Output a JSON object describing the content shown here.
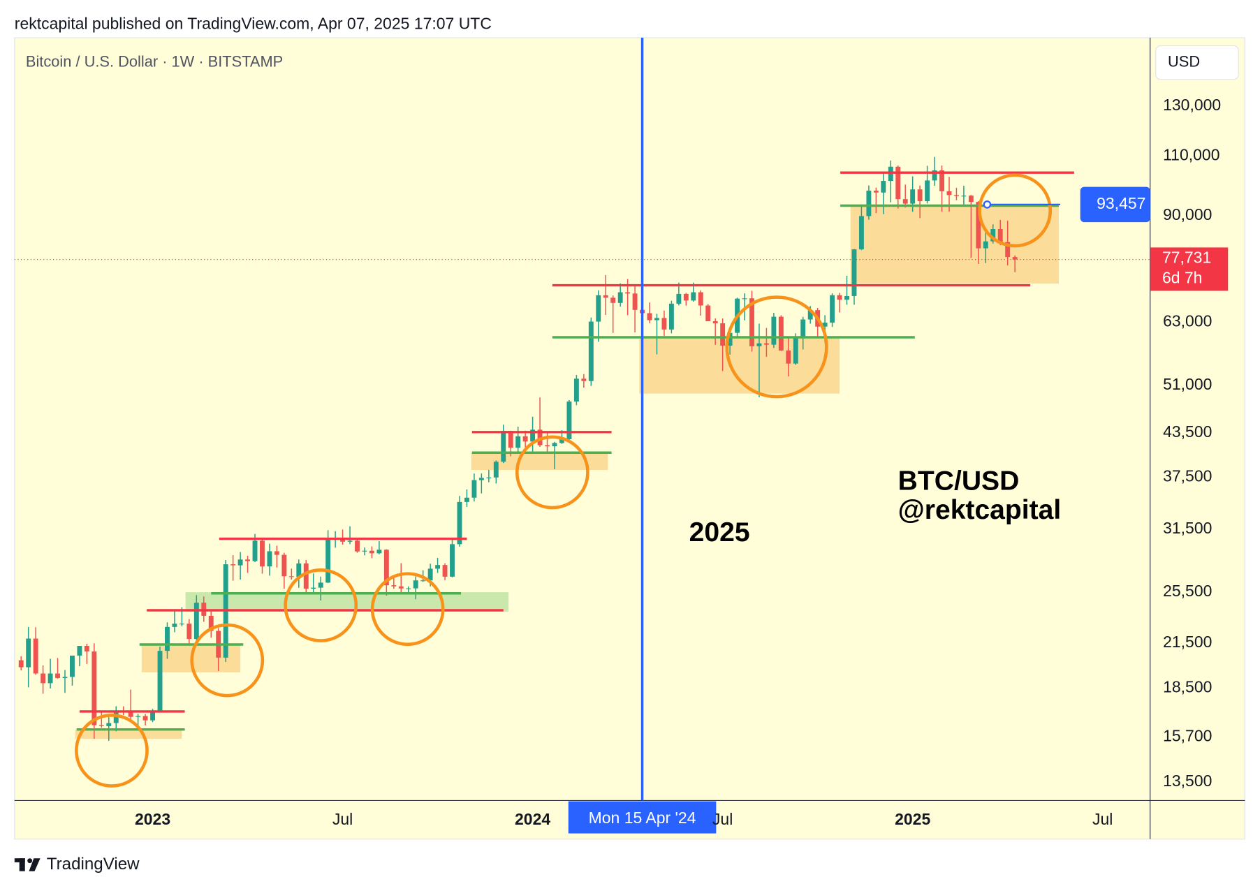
{
  "header": {
    "publisher": "rektcapital published on TradingView.com, Apr 07, 2025 17:07 UTC"
  },
  "chart_data": {
    "type": "candlestick",
    "title": "Bitcoin / U.S. Dollar · 1W · BITSTAMP",
    "currency": "USD",
    "up_color": "#22a08b",
    "down_color": "#ef5350",
    "yscale": "log",
    "x": [
      0,
      1,
      2,
      3,
      4,
      5,
      6,
      7,
      8,
      9,
      10,
      11,
      12,
      13,
      14,
      15,
      16,
      17,
      18,
      19,
      20,
      21,
      22,
      23,
      24,
      25,
      26,
      27,
      28,
      29,
      30,
      31,
      32,
      33,
      34,
      35,
      36,
      37,
      38,
      39,
      40,
      41,
      42,
      43,
      44,
      45,
      46,
      47,
      48,
      49,
      50,
      51,
      52,
      53,
      54,
      55,
      56,
      57,
      58,
      59,
      60,
      61,
      62,
      63,
      64,
      65,
      66,
      67,
      68,
      69,
      70,
      71,
      72,
      73,
      74,
      75,
      76,
      77,
      78,
      79,
      80,
      81,
      82,
      83,
      84,
      85,
      86,
      87,
      88,
      89,
      90,
      91,
      92,
      93,
      94,
      95,
      96,
      97,
      98,
      99,
      100,
      101,
      102,
      103,
      104,
      105,
      106,
      107,
      108,
      109,
      110,
      111,
      112,
      113,
      114,
      115,
      116,
      117,
      118,
      119,
      120,
      121,
      122,
      123,
      124,
      125,
      126,
      127,
      128,
      129,
      130,
      131,
      132,
      133,
      134,
      135,
      136
    ],
    "ohlc": [
      [
        20300,
        20580,
        19620,
        19830
      ],
      [
        19830,
        22700,
        18540,
        21830
      ],
      [
        21830,
        22680,
        19330,
        19420
      ],
      [
        19420,
        19950,
        18150,
        18800
      ],
      [
        18800,
        20400,
        18470,
        19420
      ],
      [
        19420,
        20450,
        19090,
        19130
      ],
      [
        19130,
        19650,
        18200,
        19200
      ],
      [
        19200,
        19690,
        18650,
        20620
      ],
      [
        20620,
        20990,
        19900,
        21300
      ],
      [
        21300,
        21450,
        20050,
        20910
      ],
      [
        20910,
        21480,
        15600,
        16330
      ],
      [
        16330,
        17150,
        16200,
        16280
      ],
      [
        16280,
        16780,
        15500,
        16450
      ],
      [
        16450,
        17400,
        16000,
        17130
      ],
      [
        17130,
        17400,
        16890,
        17100
      ],
      [
        17100,
        18400,
        16550,
        16790
      ],
      [
        16790,
        16960,
        16280,
        16840
      ],
      [
        16840,
        16950,
        16320,
        16600
      ],
      [
        16600,
        17250,
        16500,
        17130
      ],
      [
        17130,
        21250,
        17080,
        20950
      ],
      [
        20950,
        23050,
        20400,
        22700
      ],
      [
        22700,
        23960,
        22300,
        22950
      ],
      [
        22950,
        24250,
        22750,
        22950
      ],
      [
        22950,
        23300,
        21400,
        21800
      ],
      [
        21800,
        25250,
        21550,
        24620
      ],
      [
        24620,
        25130,
        23090,
        23560
      ],
      [
        23560,
        23900,
        21900,
        22400
      ],
      [
        22400,
        22600,
        19580,
        20480
      ],
      [
        20480,
        28400,
        20180,
        28000
      ],
      [
        28000,
        28870,
        26500,
        27900
      ],
      [
        27900,
        29170,
        26600,
        28450
      ],
      [
        28450,
        28810,
        27200,
        28300
      ],
      [
        28300,
        31000,
        28200,
        30300
      ],
      [
        30300,
        30450,
        27130,
        27800
      ],
      [
        27800,
        30000,
        26950,
        29250
      ],
      [
        29250,
        29800,
        27700,
        28900
      ],
      [
        28900,
        29100,
        25800,
        26900
      ],
      [
        26900,
        27600,
        26600,
        26850
      ],
      [
        26850,
        28450,
        25880,
        28080
      ],
      [
        28080,
        28400,
        25400,
        25800
      ],
      [
        25800,
        27150,
        25400,
        25890
      ],
      [
        25890,
        26860,
        24800,
        26330
      ],
      [
        26330,
        31380,
        26300,
        30500
      ],
      [
        30500,
        31280,
        29600,
        30600
      ],
      [
        30600,
        31450,
        29900,
        30200
      ],
      [
        30200,
        31800,
        29950,
        30300
      ],
      [
        30300,
        30450,
        29100,
        29230
      ],
      [
        29230,
        29620,
        28850,
        29300
      ],
      [
        29300,
        29730,
        28580,
        29050
      ],
      [
        29050,
        30250,
        28950,
        29400
      ],
      [
        29400,
        29450,
        25200,
        26100
      ],
      [
        26100,
        26800,
        25800,
        26000
      ],
      [
        26000,
        28100,
        25400,
        25820
      ],
      [
        25820,
        26000,
        25350,
        25830
      ],
      [
        25830,
        26880,
        24900,
        26530
      ],
      [
        26530,
        27450,
        26400,
        26530
      ],
      [
        26530,
        28050,
        26000,
        27590
      ],
      [
        27590,
        28600,
        27200,
        27930
      ],
      [
        27930,
        28100,
        26550,
        26860
      ],
      [
        26860,
        30400,
        26800,
        29950
      ],
      [
        29950,
        35200,
        29700,
        34500
      ],
      [
        34500,
        35980,
        33940,
        35000
      ],
      [
        35000,
        37950,
        34550,
        37120
      ],
      [
        37120,
        37950,
        35500,
        37400
      ],
      [
        37400,
        38420,
        36850,
        37450
      ],
      [
        37450,
        39650,
        36700,
        39480
      ],
      [
        39480,
        44700,
        39300,
        43780
      ],
      [
        43780,
        43800,
        40200,
        41370
      ],
      [
        41370,
        44400,
        40600,
        42990
      ],
      [
        42990,
        43800,
        41400,
        42240
      ],
      [
        42240,
        45900,
        40750,
        43950
      ],
      [
        43950,
        48970,
        41500,
        41730
      ],
      [
        41730,
        43500,
        40600,
        41580
      ],
      [
        41580,
        42200,
        38500,
        42040
      ],
      [
        42040,
        43880,
        41900,
        42580
      ],
      [
        42580,
        48550,
        42300,
        48300
      ],
      [
        48300,
        52800,
        47700,
        52140
      ],
      [
        52140,
        52950,
        50600,
        51730
      ],
      [
        51730,
        64000,
        50900,
        63130
      ],
      [
        63130,
        70100,
        59000,
        68960
      ],
      [
        68960,
        73800,
        64550,
        68390
      ],
      [
        68390,
        68900,
        60770,
        67210
      ],
      [
        67210,
        71750,
        66400,
        69650
      ],
      [
        69650,
        72800,
        64500,
        69360
      ],
      [
        69360,
        71300,
        60900,
        65660
      ],
      [
        65660,
        67200,
        59650,
        64940
      ],
      [
        64940,
        67300,
        62800,
        63440
      ],
      [
        63440,
        64800,
        56550,
        63900
      ],
      [
        63900,
        65500,
        60200,
        61480
      ],
      [
        61480,
        67700,
        60700,
        67040
      ],
      [
        67040,
        71950,
        66650,
        69270
      ],
      [
        69270,
        69500,
        66600,
        67750
      ],
      [
        67750,
        71950,
        67500,
        69650
      ],
      [
        69650,
        70100,
        64400,
        66630
      ],
      [
        66630,
        66950,
        63200,
        63210
      ],
      [
        63210,
        63800,
        58400,
        62770
      ],
      [
        62770,
        63800,
        53500,
        58240
      ],
      [
        58240,
        61500,
        56500,
        60800
      ],
      [
        60800,
        68400,
        59800,
        68180
      ],
      [
        68180,
        69400,
        63400,
        68250
      ],
      [
        68250,
        70000,
        57100,
        58120
      ],
      [
        58120,
        62700,
        49000,
        58700
      ],
      [
        58700,
        61800,
        56100,
        58430
      ],
      [
        58430,
        65000,
        57800,
        64170
      ],
      [
        64170,
        64500,
        57200,
        57300
      ],
      [
        57300,
        59800,
        52550,
        54850
      ],
      [
        54850,
        60700,
        54600,
        59990
      ],
      [
        59990,
        64150,
        57500,
        63580
      ],
      [
        63580,
        66500,
        62700,
        65600
      ],
      [
        65600,
        66100,
        59850,
        62080
      ],
      [
        62080,
        64500,
        58900,
        62900
      ],
      [
        62900,
        69400,
        62000,
        68960
      ],
      [
        68960,
        69500,
        65100,
        67930
      ],
      [
        67930,
        73600,
        66800,
        68780
      ],
      [
        68780,
        80500,
        66800,
        80420
      ],
      [
        80420,
        93500,
        80200,
        89900
      ],
      [
        89900,
        99600,
        88800,
        97900
      ],
      [
        97900,
        98900,
        90800,
        97280
      ],
      [
        97280,
        104000,
        90500,
        101150
      ],
      [
        101150,
        108300,
        94150,
        106070
      ],
      [
        106070,
        106500,
        92200,
        95160
      ],
      [
        95160,
        99900,
        92500,
        93740
      ],
      [
        93740,
        102700,
        91200,
        98310
      ],
      [
        98310,
        99600,
        89300,
        94510
      ],
      [
        94510,
        106400,
        93800,
        101300
      ],
      [
        101300,
        109600,
        99500,
        104780
      ],
      [
        104780,
        106500,
        91200,
        97700
      ],
      [
        97700,
        102500,
        91200,
        96460
      ],
      [
        96460,
        98850,
        94800,
        96140
      ],
      [
        96140,
        99500,
        93400,
        96270
      ],
      [
        96270,
        96500,
        78200,
        94260
      ],
      [
        94260,
        94500,
        76600,
        80700
      ],
      [
        80700,
        85300,
        76800,
        82600
      ],
      [
        82600,
        87450,
        82000,
        86080
      ],
      [
        86080,
        88750,
        81600,
        82390
      ],
      [
        82390,
        88500,
        76200,
        78370
      ],
      [
        78370,
        78800,
        74500,
        77731
      ]
    ],
    "xlim": [
      -0.9,
      154.5
    ],
    "xticks": [
      {
        "value": 18,
        "label": "2023"
      },
      {
        "value": 44,
        "label": "Jul"
      },
      {
        "value": 70,
        "label": "2024"
      },
      {
        "value": 96,
        "label": "Jul"
      },
      {
        "value": 122,
        "label": "2025"
      },
      {
        "value": 148,
        "label": "Jul"
      }
    ],
    "ylim": [
      12690,
      163400
    ],
    "yticks": [
      {
        "value": 13500,
        "label": "13,500"
      },
      {
        "value": 15700,
        "label": "15,700"
      },
      {
        "value": 18500,
        "label": "18,500"
      },
      {
        "value": 21500,
        "label": "21,500"
      },
      {
        "value": 25500,
        "label": "25,500"
      },
      {
        "value": 31500,
        "label": "31,500"
      },
      {
        "value": 37500,
        "label": "37,500"
      },
      {
        "value": 43500,
        "label": "43,500"
      },
      {
        "value": 51000,
        "label": "51,000"
      },
      {
        "value": 63000,
        "label": "63,000"
      },
      {
        "value": 90000,
        "label": "90,000"
      },
      {
        "value": 110000,
        "label": "110,000"
      },
      {
        "value": 130000,
        "label": "130,000"
      }
    ],
    "zones": [
      {
        "from": 7.4,
        "to": 22,
        "low": 15600,
        "high": 16100,
        "color": "#fcd68e"
      },
      {
        "from": 16.5,
        "to": 30,
        "low": 19500,
        "high": 21400,
        "color": "#fcd68e"
      },
      {
        "from": 22.5,
        "to": 66.7,
        "low": 23900,
        "high": 25500,
        "color": "#c2e4a4"
      },
      {
        "from": 61.6,
        "to": 80.3,
        "low": 38400,
        "high": 40700,
        "color": "#fcd68e"
      },
      {
        "from": 84.6,
        "to": 112,
        "low": 49600,
        "high": 59900,
        "color": "#fcd68e"
      },
      {
        "from": 113.5,
        "to": 142,
        "low": 71700,
        "high": 93100,
        "color": "#fcd68e"
      }
    ],
    "levels": [
      {
        "from": 8,
        "to": 22.4,
        "value": 17100,
        "color": "#f23645"
      },
      {
        "from": 7.6,
        "to": 22.4,
        "value": 16100,
        "color": "#4caf50"
      },
      {
        "from": 16.2,
        "to": 30.4,
        "value": 21400,
        "color": "#4caf50"
      },
      {
        "from": 17.2,
        "to": 66,
        "value": 24000,
        "color": "#f23645"
      },
      {
        "from": 26,
        "to": 60.2,
        "value": 25400,
        "color": "#4caf50"
      },
      {
        "from": 27.1,
        "to": 61,
        "value": 30500,
        "color": "#f23645"
      },
      {
        "from": 61.7,
        "to": 80.8,
        "value": 43600,
        "color": "#f23645"
      },
      {
        "from": 61.7,
        "to": 80.8,
        "value": 40700,
        "color": "#4caf50"
      },
      {
        "from": 72.7,
        "to": 138.1,
        "value": 71300,
        "color": "#f23645"
      },
      {
        "from": 72.7,
        "to": 122.3,
        "value": 59900,
        "color": "#4caf50"
      },
      {
        "from": 112.1,
        "to": 144.1,
        "value": 104000,
        "color": "#f23645"
      },
      {
        "from": 112.1,
        "to": 142,
        "value": 93100,
        "color": "#4caf50"
      }
    ],
    "circles": [
      {
        "x": 12.4,
        "y": 15000
      },
      {
        "x": 28.2,
        "y": 20300
      },
      {
        "x": 41,
        "y": 24400
      },
      {
        "x": 52.9,
        "y": 24100
      },
      {
        "x": 72.7,
        "y": 38100
      },
      {
        "x": 103.4,
        "y": 58000
      },
      {
        "x": 136,
        "y": 91600
      }
    ],
    "circle_color": "#f7931a",
    "marker": {
      "x": 85,
      "label": "Mon 15 Apr '24",
      "color": "#2962ff"
    },
    "annotation_price": {
      "from": 132.2,
      "to": 142.2,
      "value": 93457,
      "label": "93,457",
      "color": "#2962ff"
    },
    "last_price": {
      "value": 77731,
      "label": "77,731",
      "countdown": "6d 7h",
      "color": "#f23645"
    },
    "notes": [
      "2025",
      "BTC/USD",
      "@rektcapital"
    ]
  },
  "footer": {
    "brand": "TradingView"
  }
}
